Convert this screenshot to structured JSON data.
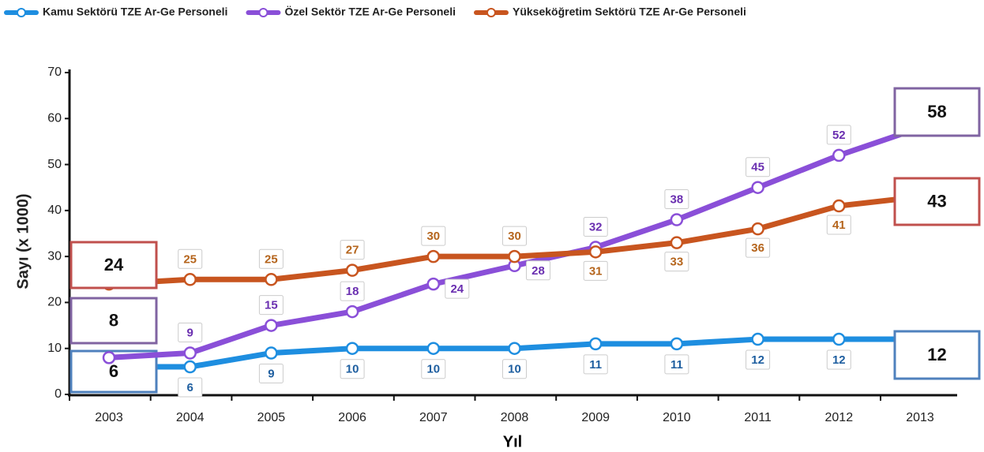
{
  "chart_data": {
    "type": "line",
    "categories": [
      "2003",
      "2004",
      "2005",
      "2006",
      "2007",
      "2008",
      "2009",
      "2010",
      "2011",
      "2012",
      "2013"
    ],
    "series": [
      {
        "name": "Kamu Sektörü TZE Ar-Ge Personeli",
        "color": "#1e8ee0",
        "label_color": "#1f5fa0",
        "box_color": "#4f81bd",
        "values": [
          6,
          6,
          9,
          10,
          10,
          10,
          11,
          11,
          12,
          12,
          12
        ]
      },
      {
        "name": "Özel Sektör TZE Ar-Ge Personeli",
        "color": "#8a4fd8",
        "label_color": "#6a2fb0",
        "box_color": "#8064a2",
        "values": [
          8,
          9,
          15,
          18,
          24,
          28,
          32,
          38,
          45,
          52,
          58
        ]
      },
      {
        "name": "Yükseköğretim Sektörü TZE Ar-Ge Personeli",
        "color": "#c8551f",
        "label_color": "#b5651d",
        "box_color": "#c0504d",
        "values": [
          24,
          25,
          25,
          27,
          30,
          30,
          31,
          33,
          36,
          41,
          43
        ]
      }
    ],
    "ylim": [
      0,
      70
    ],
    "yticks": [
      0,
      10,
      20,
      30,
      40,
      50,
      60,
      70
    ],
    "y_label": "Sayı (x 1000)",
    "x_label": "Yıl"
  }
}
